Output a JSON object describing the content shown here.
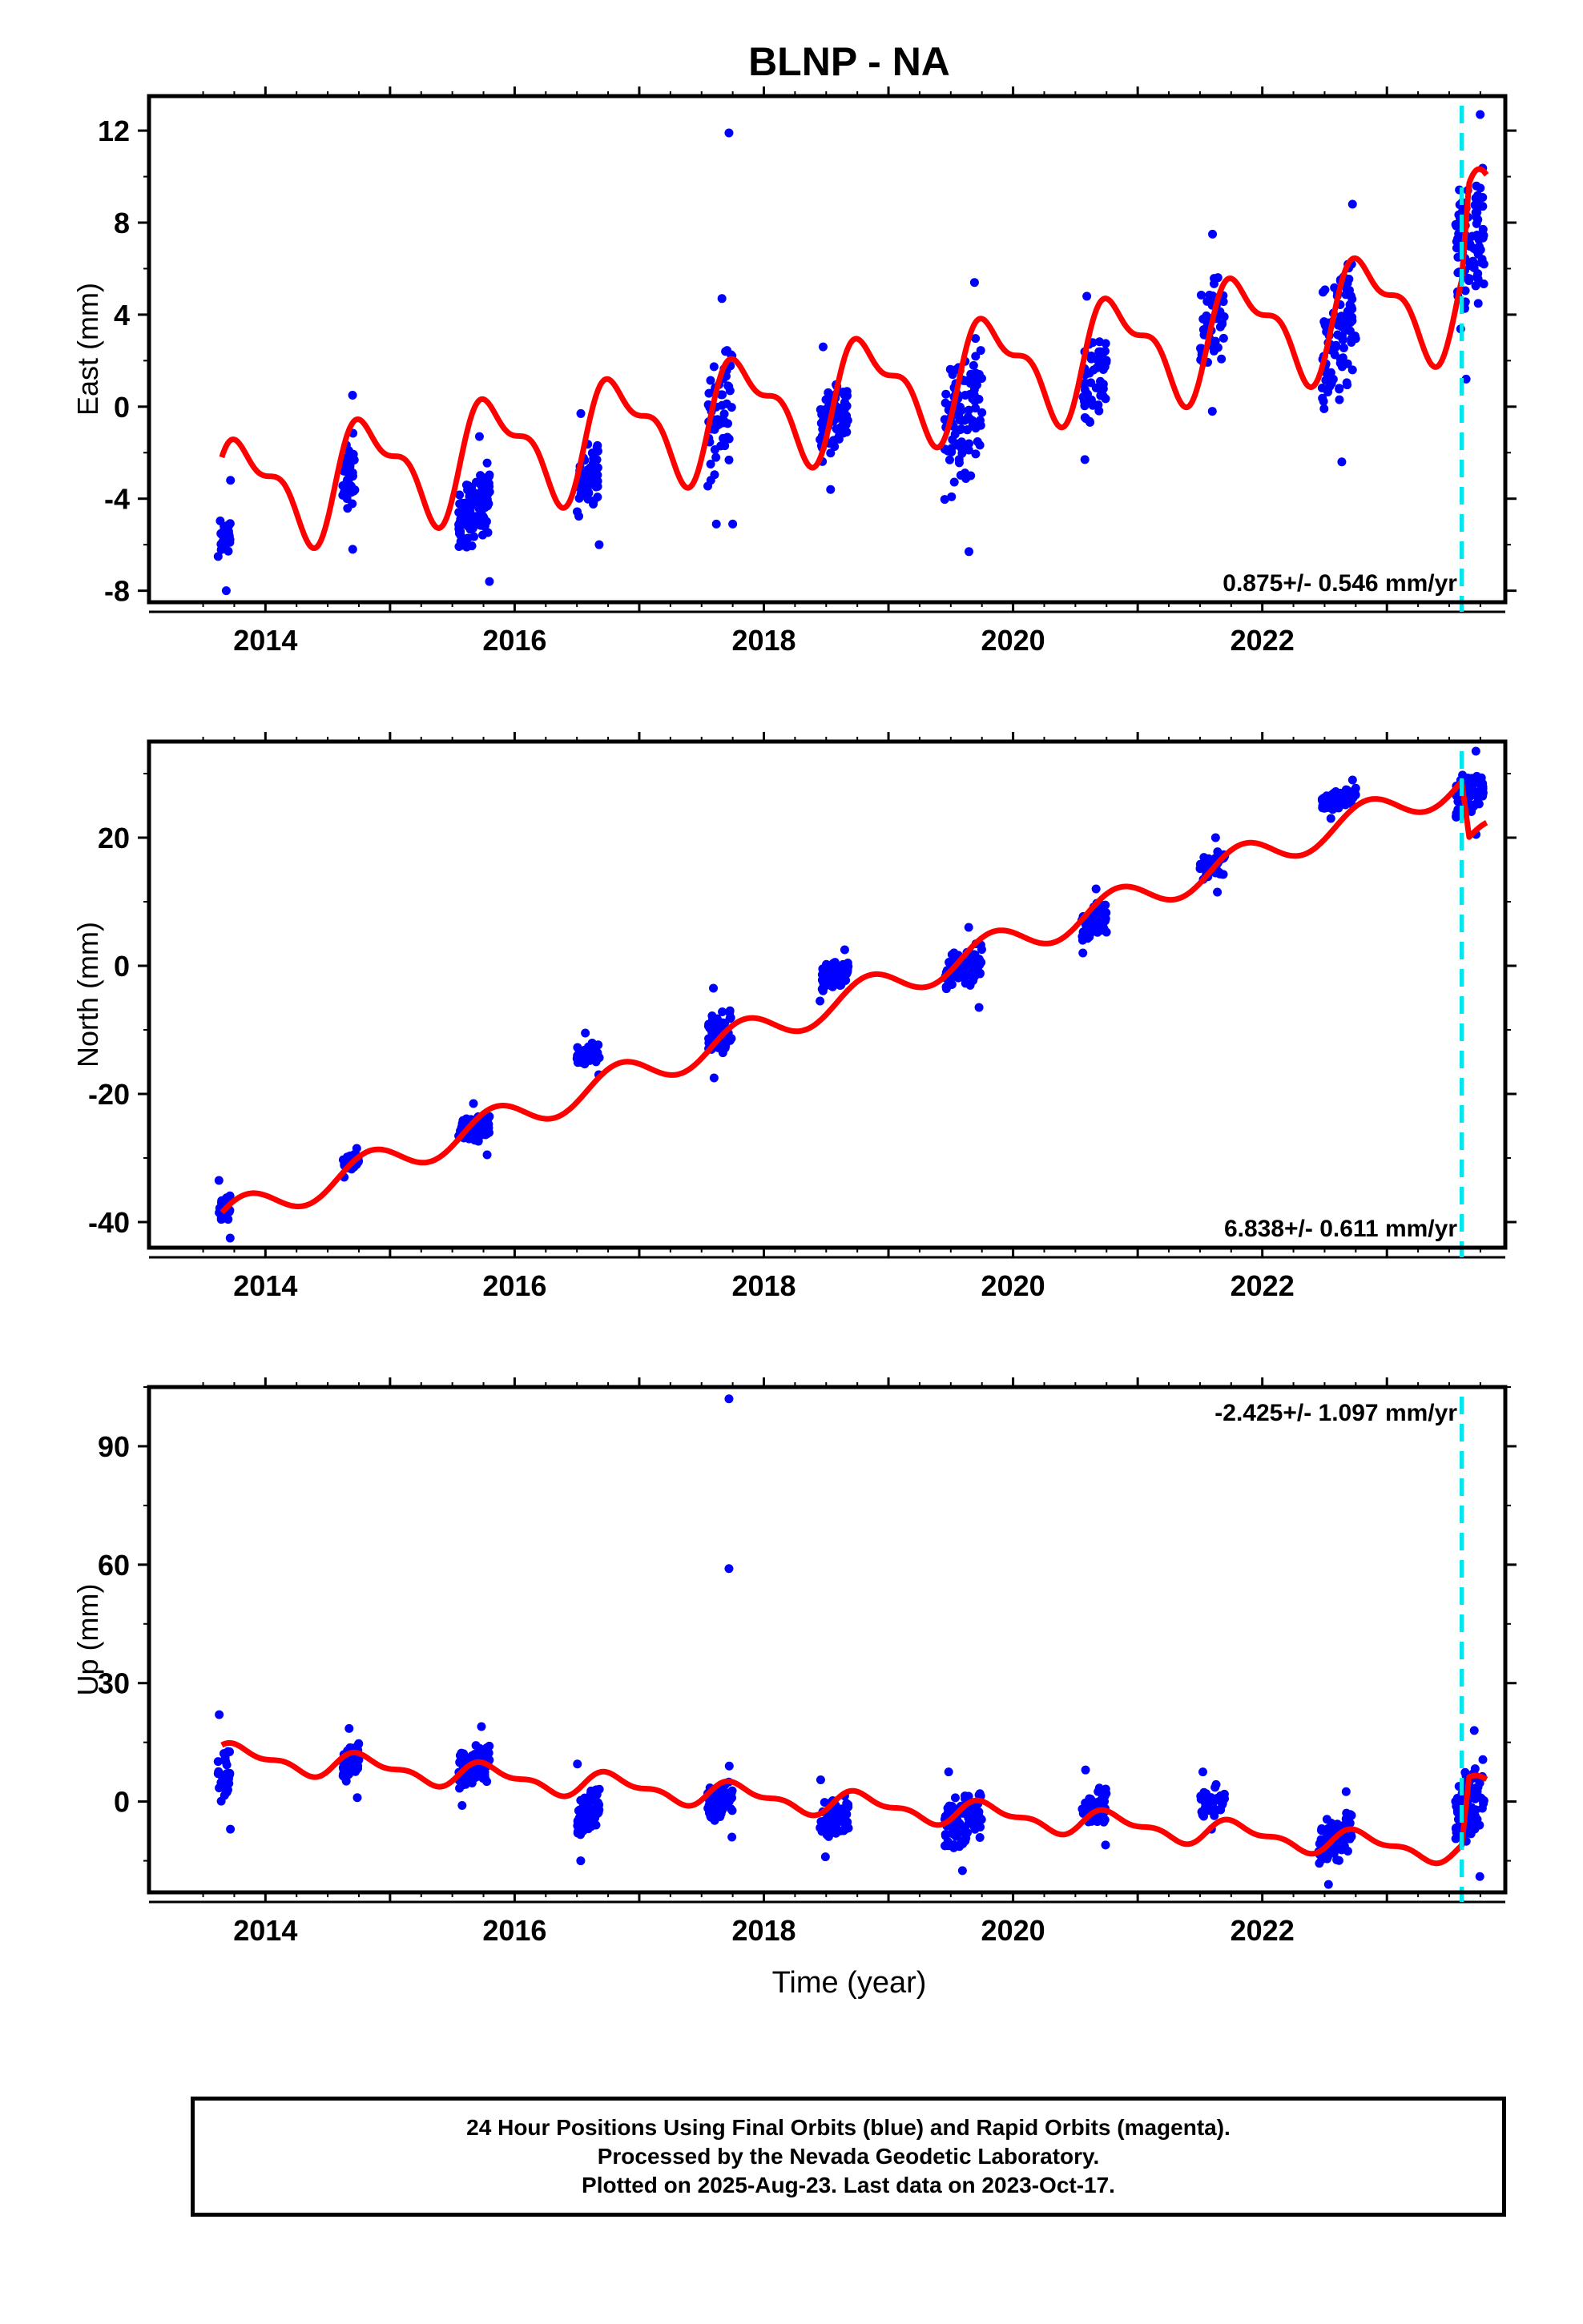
{
  "title": "BLNP - NA",
  "xlabel": "Time (year)",
  "colors": {
    "data": "#0000ff",
    "model": "#ff0000",
    "event": "#00e5ee",
    "axis": "#000000"
  },
  "chart_data": [
    {
      "type": "scatter",
      "panel": "east",
      "ylabel": "East (mm)",
      "ylim": [
        -8.5,
        13.5
      ],
      "yticks": [
        -8,
        -4,
        0,
        4,
        8,
        12
      ],
      "xlim": [
        2013.4,
        2023.95
      ],
      "xticks": [
        2014,
        2016,
        2018,
        2020,
        2022
      ],
      "rate_label": "0.875+/- 0.546 mm/yr",
      "rate_position": "bottom-right",
      "event_x": 2023.6,
      "model": {
        "intercept": -3.9,
        "t0": 2013.65,
        "rate": 0.875,
        "annual_cos": 0.8,
        "annual_sin": 2.0,
        "semi_cos": 0.9,
        "semi_sin": 0.3,
        "steps": [
          {
            "x": 2023.6,
            "dy": 3.0
          }
        ]
      },
      "clusters": [
        {
          "t0": 2013.62,
          "t1": 2013.72,
          "ymin": -8.0,
          "ymax": -3.2,
          "n": 30
        },
        {
          "t0": 2014.62,
          "t1": 2014.72,
          "ymin": -6.2,
          "ymax": 0.5,
          "n": 45
        },
        {
          "t0": 2015.55,
          "t1": 2015.8,
          "ymin": -7.6,
          "ymax": -1.3,
          "n": 120
        },
        {
          "t0": 2016.5,
          "t1": 2016.68,
          "ymin": -6.0,
          "ymax": -0.3,
          "n": 60
        },
        {
          "t0": 2017.55,
          "t1": 2017.75,
          "ymin": -5.1,
          "ymax": 4.7,
          "n": 60
        },
        {
          "t0": 2018.45,
          "t1": 2018.68,
          "ymin": -3.6,
          "ymax": 2.6,
          "n": 80
        },
        {
          "t0": 2019.45,
          "t1": 2019.75,
          "ymin": -6.3,
          "ymax": 5.4,
          "n": 110
        },
        {
          "t0": 2020.55,
          "t1": 2020.75,
          "ymin": -2.3,
          "ymax": 4.8,
          "n": 60
        },
        {
          "t0": 2021.5,
          "t1": 2021.7,
          "ymin": -0.2,
          "ymax": 7.5,
          "n": 50
        },
        {
          "t0": 2022.48,
          "t1": 2022.75,
          "ymin": -2.4,
          "ymax": 8.8,
          "n": 100
        },
        {
          "t0": 2023.55,
          "t1": 2023.78,
          "ymin": 1.2,
          "ymax": 12.7,
          "n": 90
        }
      ],
      "outliers": [
        {
          "x": 2017.72,
          "y": 11.9
        },
        {
          "x": 2017.75,
          "y": -5.1
        }
      ]
    },
    {
      "type": "scatter",
      "panel": "north",
      "ylabel": "North (mm)",
      "ylim": [
        -44,
        35
      ],
      "yticks": [
        -40,
        -20,
        0,
        20
      ],
      "xlim": [
        2013.4,
        2023.95
      ],
      "xticks": [
        2014,
        2016,
        2018,
        2020,
        2022
      ],
      "rate_label": "6.838+/- 0.611 mm/yr",
      "rate_position": "bottom-right",
      "event_x": 2023.6,
      "model": {
        "intercept": -39.5,
        "t0": 2013.65,
        "rate": 6.838,
        "annual_cos": 1.0,
        "annual_sin": 2.3,
        "semi_cos": 0.0,
        "semi_sin": 0.0,
        "steps": [
          {
            "x": 2023.6,
            "dy": -10.0
          }
        ]
      },
      "clusters": [
        {
          "t0": 2013.62,
          "t1": 2013.72,
          "ymin": -42.5,
          "ymax": -33.5,
          "n": 30
        },
        {
          "t0": 2014.62,
          "t1": 2014.75,
          "ymin": -33.0,
          "ymax": -28.5,
          "n": 45
        },
        {
          "t0": 2015.55,
          "t1": 2015.8,
          "ymin": -29.5,
          "ymax": -21.5,
          "n": 100
        },
        {
          "t0": 2016.5,
          "t1": 2016.68,
          "ymin": -17.0,
          "ymax": -10.5,
          "n": 60
        },
        {
          "t0": 2017.55,
          "t1": 2017.75,
          "ymin": -17.5,
          "ymax": -3.5,
          "n": 60
        },
        {
          "t0": 2018.45,
          "t1": 2018.68,
          "ymin": -5.5,
          "ymax": 2.5,
          "n": 70
        },
        {
          "t0": 2019.45,
          "t1": 2019.75,
          "ymin": -6.5,
          "ymax": 6.0,
          "n": 90
        },
        {
          "t0": 2020.55,
          "t1": 2020.75,
          "ymin": 2.0,
          "ymax": 12.0,
          "n": 60
        },
        {
          "t0": 2021.5,
          "t1": 2021.7,
          "ymin": 11.5,
          "ymax": 20.0,
          "n": 45
        },
        {
          "t0": 2022.48,
          "t1": 2022.75,
          "ymin": 23.0,
          "ymax": 29.0,
          "n": 80
        },
        {
          "t0": 2023.55,
          "t1": 2023.78,
          "ymin": 20.5,
          "ymax": 33.5,
          "n": 80
        }
      ],
      "outliers": []
    },
    {
      "type": "scatter",
      "panel": "up",
      "ylabel": "Up (mm)",
      "ylim": [
        -23,
        105
      ],
      "yticks": [
        0,
        30,
        60,
        90
      ],
      "xlim": [
        2013.4,
        2023.95
      ],
      "xticks": [
        2014,
        2016,
        2018,
        2020,
        2022
      ],
      "rate_label": "-2.425+/- 1.097 mm/yr",
      "rate_position": "top-right",
      "event_x": 2023.6,
      "model": {
        "intercept": 11.5,
        "t0": 2013.65,
        "rate": -2.425,
        "annual_cos": 1.5,
        "annual_sin": 2.2,
        "semi_cos": 1.3,
        "semi_sin": 0.5,
        "steps": [
          {
            "x": 2023.6,
            "dy": 16.0
          }
        ]
      },
      "clusters": [
        {
          "t0": 2013.62,
          "t1": 2013.72,
          "ymin": -7.0,
          "ymax": 22.0,
          "n": 30
        },
        {
          "t0": 2014.62,
          "t1": 2014.75,
          "ymin": 1.0,
          "ymax": 18.5,
          "n": 50
        },
        {
          "t0": 2015.55,
          "t1": 2015.8,
          "ymin": -1.0,
          "ymax": 19.0,
          "n": 110
        },
        {
          "t0": 2016.5,
          "t1": 2016.68,
          "ymin": -15.0,
          "ymax": 9.5,
          "n": 70
        },
        {
          "t0": 2017.55,
          "t1": 2017.75,
          "ymin": -9.0,
          "ymax": 9.0,
          "n": 60
        },
        {
          "t0": 2018.45,
          "t1": 2018.68,
          "ymin": -14.0,
          "ymax": 5.5,
          "n": 70
        },
        {
          "t0": 2019.45,
          "t1": 2019.75,
          "ymin": -17.5,
          "ymax": 7.5,
          "n": 100
        },
        {
          "t0": 2020.55,
          "t1": 2020.75,
          "ymin": -11.0,
          "ymax": 8.0,
          "n": 60
        },
        {
          "t0": 2021.5,
          "t1": 2021.7,
          "ymin": -7.0,
          "ymax": 7.5,
          "n": 45
        },
        {
          "t0": 2022.45,
          "t1": 2022.72,
          "ymin": -21.0,
          "ymax": 2.5,
          "n": 90
        },
        {
          "t0": 2023.55,
          "t1": 2023.78,
          "ymin": -19.0,
          "ymax": 18.0,
          "n": 90
        }
      ],
      "outliers": [
        {
          "x": 2017.72,
          "y": 102
        },
        {
          "x": 2017.72,
          "y": 59
        }
      ]
    }
  ],
  "footer": {
    "line1": "24 Hour Positions Using Final Orbits (blue) and Rapid Orbits (magenta).",
    "line2": "Processed by the Nevada Geodetic Laboratory.",
    "line3": "Plotted on 2025-Aug-23. Last data on 2023-Oct-17."
  }
}
